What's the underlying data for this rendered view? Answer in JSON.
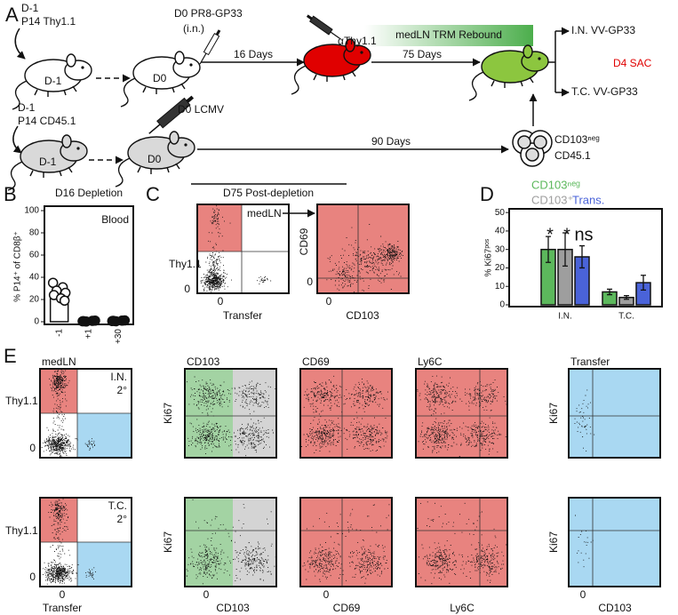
{
  "panel_a": {
    "label": "A",
    "thy_donor": {
      "day": "D-1",
      "cells": "P14 Thy1.1"
    },
    "mouse_1": "D-1",
    "infection_1": "D0 PR8-GP33",
    "route_1": "(i.n.)",
    "mouse_2": "D0",
    "interval_1": "16 Days",
    "antibody": "αThy1.1",
    "rebound": "medLN TRM Rebound",
    "interval_2": "75 Days",
    "challenge_in": "I.N. VV-GP33",
    "sac": "D4 SAC",
    "challenge_tc": "T.C. VV-GP33",
    "cd45_donor": {
      "day": "D-1",
      "cells": "P14 CD45.1"
    },
    "mouse_3": "D-1",
    "infection_2": "D0 LCMV",
    "mouse_4": "D0",
    "interval_3": "90 Days",
    "transfer_cells": "CD103ⁿᵉᵍ",
    "transfer_marker": "CD45.1"
  },
  "chart_data": [
    {
      "type": "bar",
      "panel": "B",
      "title": "D16 Depletion",
      "annotation": "Blood",
      "y_label": "% P14⁺ of CD8β⁺",
      "categories": [
        "-1",
        "+1",
        "+30"
      ],
      "values": [
        26,
        0.5,
        0.8
      ],
      "points": [
        [
          35,
          31,
          28,
          26,
          24,
          21,
          19
        ],
        [
          0.4,
          0.8,
          0.2,
          1,
          0.5
        ],
        [
          0.6,
          1,
          0.4,
          1.2,
          0.8
        ]
      ],
      "color": "#ffffff",
      "marker_fill": [
        "#ffffff",
        "#111111",
        "#111111"
      ],
      "ylim": [
        0,
        100
      ],
      "yticks": [
        0,
        20,
        40,
        60,
        80,
        100
      ]
    },
    {
      "type": "bar",
      "panel": "D",
      "y_label": "% Ki67ᵖᵒˢ",
      "categories": [
        "I.N.",
        "T.C."
      ],
      "series": [
        {
          "name": "CD103ⁿᵉᵍ",
          "color": "#5cb85c",
          "values": [
            30,
            7
          ],
          "errors": [
            7,
            1.5
          ]
        },
        {
          "name": "CD103⁺",
          "color": "#9e9e9e",
          "values": [
            30,
            4
          ],
          "errors": [
            9,
            1
          ]
        },
        {
          "name": "Trans.",
          "color": "#4a63d9",
          "values": [
            26,
            12
          ],
          "errors": [
            6,
            4
          ]
        }
      ],
      "annotations": [
        "*",
        "*",
        "ns"
      ],
      "ylim": [
        0,
        52
      ],
      "yticks": [
        0,
        10,
        20,
        30,
        40,
        50
      ]
    }
  ],
  "panel_c": {
    "label": "C",
    "title": "D75 Post-depletion",
    "gate_plot": {
      "y_label": "Thy1.1",
      "y_tick": "0",
      "x_tick": "0",
      "x_label": "Transfer",
      "gate": "medLN"
    },
    "phenotype_plot": {
      "y_label": "CD69",
      "y_tick": "0",
      "x_tick": "0",
      "x_label": "CD103"
    }
  },
  "panel_e": {
    "label": "E",
    "column_titles": [
      "medLN",
      "CD103",
      "CD69",
      "Ly6C",
      "Transfer"
    ],
    "rows": [
      {
        "route": "I.N.",
        "challenge": "2°",
        "gate_y_label": "Thy1.1",
        "gate_y_tick": "0",
        "marker_y_label": "Ki67",
        "transfer_y_label": "Ki67"
      },
      {
        "route": "T.C.",
        "challenge": "2°",
        "gate_y_label": "Thy1.1",
        "gate_y_tick": "0",
        "marker_y_label": "Ki67",
        "transfer_y_label": "Ki67"
      }
    ],
    "x_ticks": [
      "0",
      "0",
      "0",
      "0"
    ],
    "x_labels": [
      "Transfer",
      "CD103",
      "CD69",
      "Ly6C",
      "CD103"
    ]
  }
}
